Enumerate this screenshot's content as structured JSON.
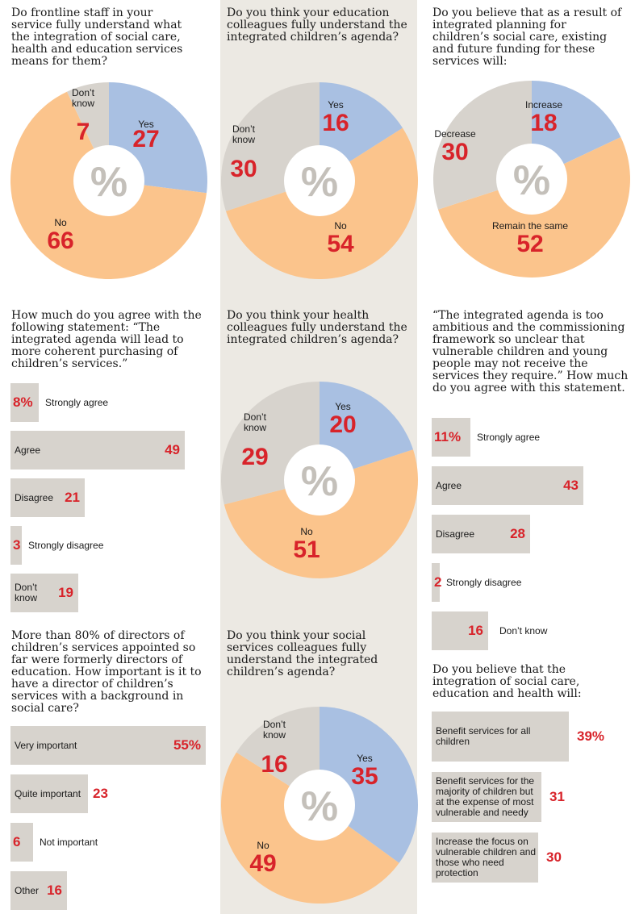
{
  "questions": {
    "q1": "Do frontline staff in your service fully understand what the integration of social care, health and education services means for them?",
    "q2": "Do you think your education colleagues fully understand the integrated children’s agenda?",
    "q3": "Do you believe that as a result of integrated planning for children’s social care, existing and future funding for these services will:",
    "q4": "How much do you agree with the following statement: “The integrated agenda will lead to more coherent purchasing of children’s services.”",
    "q5": "Do you think your health colleagues fully understand the integrated children’s agenda?",
    "q6": "“The integrated agenda is too ambitious and the commissioning framework so unclear that vulnerable children and young people may not receive the services they require.” How much do you agree with this statement.",
    "q7": "More than 80% of directors of children’s services appointed so far were formerly directors of education. How important is it to have a director of children’s services with a background in social care?",
    "q8": "Do you think your social services colleagues fully understand the integrated children’s agenda?",
    "q9": "Do you believe that the integration of social care, education and health will:"
  },
  "colors": {
    "blue": "#a9c0e2",
    "orange": "#fbc48c",
    "grey": "#d7d3cd",
    "red": "#d8232a",
    "column_bg": "#ece9e3"
  },
  "center_symbol": "%",
  "chart_data": [
    {
      "type": "pie",
      "id": "pie1",
      "slices": [
        {
          "label": "Yes",
          "value": 27,
          "color": "#a9c0e2"
        },
        {
          "label": "No",
          "value": 66,
          "color": "#fbc48c"
        },
        {
          "label": "Don’t know",
          "value": 7,
          "color": "#d7d3cd"
        }
      ]
    },
    {
      "type": "pie",
      "id": "pie2",
      "slices": [
        {
          "label": "Yes",
          "value": 16,
          "color": "#a9c0e2"
        },
        {
          "label": "No",
          "value": 54,
          "color": "#fbc48c"
        },
        {
          "label": "Don’t know",
          "value": 30,
          "color": "#d7d3cd"
        }
      ]
    },
    {
      "type": "pie",
      "id": "pie3",
      "slices": [
        {
          "label": "Increase",
          "value": 18,
          "color": "#a9c0e2"
        },
        {
          "label": "Remain the same",
          "value": 52,
          "color": "#fbc48c"
        },
        {
          "label": "Decrease",
          "value": 30,
          "color": "#d7d3cd"
        }
      ]
    },
    {
      "type": "bar",
      "id": "bars1",
      "categories": [
        "Strongly agree",
        "Agree",
        "Disagree",
        "Strongly disagree",
        "Don’t know"
      ],
      "values": [
        8,
        49,
        21,
        3,
        19
      ],
      "value_labels": [
        "8%",
        "49",
        "21",
        "3",
        "19"
      ]
    },
    {
      "type": "pie",
      "id": "pie5",
      "slices": [
        {
          "label": "Yes",
          "value": 20,
          "color": "#a9c0e2"
        },
        {
          "label": "No",
          "value": 51,
          "color": "#fbc48c"
        },
        {
          "label": "Don’t know",
          "value": 29,
          "color": "#d7d3cd"
        }
      ]
    },
    {
      "type": "bar",
      "id": "bars2",
      "categories": [
        "Strongly agree",
        "Agree",
        "Disagree",
        "Strongly disagree",
        "Don’t know"
      ],
      "values": [
        11,
        43,
        28,
        2,
        16
      ],
      "value_labels": [
        "11%",
        "43",
        "28",
        "2",
        "16"
      ]
    },
    {
      "type": "bar",
      "id": "bars3",
      "categories": [
        "Very important",
        "Quite important",
        "Not important",
        "Other"
      ],
      "values": [
        55,
        23,
        6,
        16
      ],
      "value_labels": [
        "55%",
        "23",
        "6",
        "16"
      ]
    },
    {
      "type": "pie",
      "id": "pie8",
      "slices": [
        {
          "label": "Yes",
          "value": 35,
          "color": "#a9c0e2"
        },
        {
          "label": "No",
          "value": 49,
          "color": "#fbc48c"
        },
        {
          "label": "Don’t know",
          "value": 16,
          "color": "#d7d3cd"
        }
      ]
    },
    {
      "type": "bar",
      "id": "bars4",
      "categories": [
        "Benefit services for all children",
        "Benefit services for the majority of children but at the expense of most vulnerable and needy",
        "Increase the focus on vulnerable children and those who need protection"
      ],
      "values": [
        39,
        31,
        30
      ],
      "value_labels": [
        "39%",
        "31",
        "30"
      ]
    }
  ]
}
